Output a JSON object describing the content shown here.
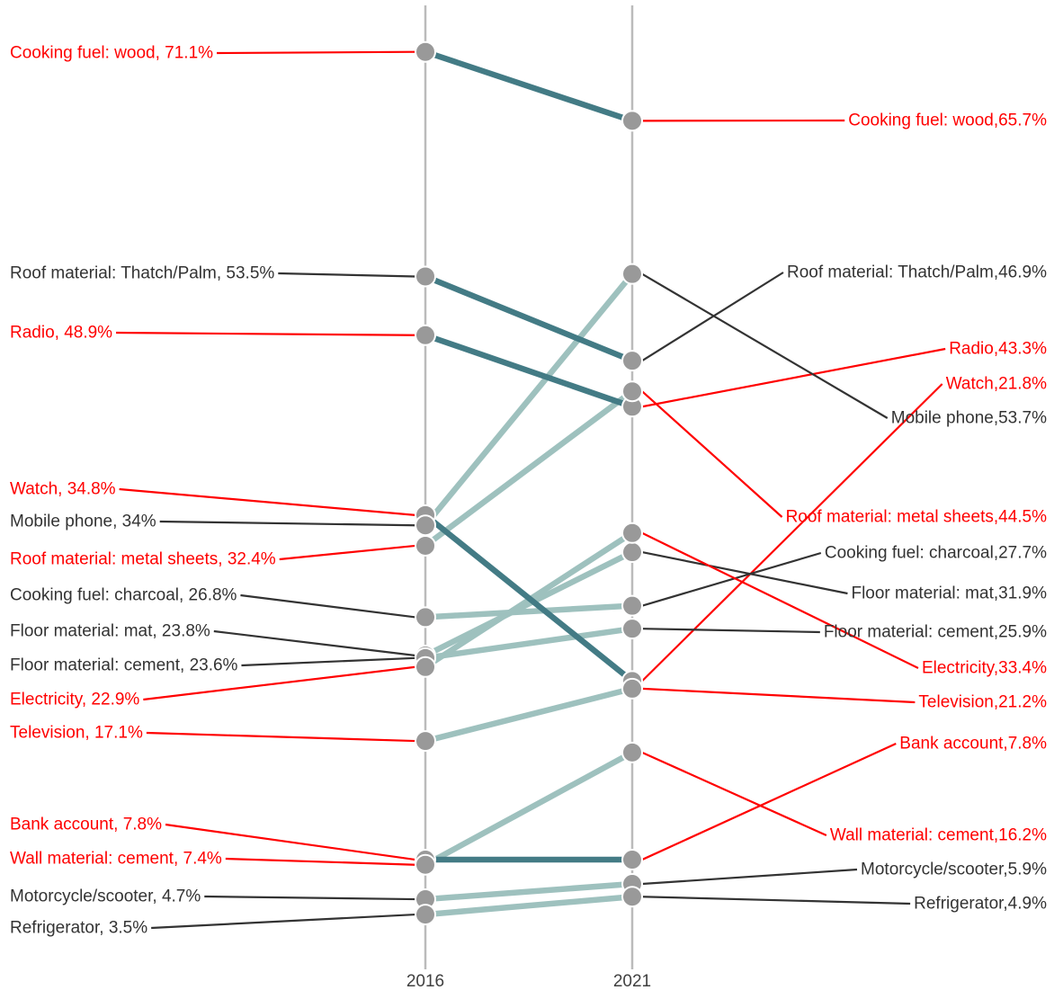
{
  "chart_data": {
    "type": "slope",
    "x": [
      "2016",
      "2021"
    ],
    "series": [
      {
        "name": "Cooking fuel: wood",
        "values": [
          71.1,
          65.7
        ],
        "label_2016": "Cooking fuel: wood, 71.1%",
        "label_2021": "Cooking fuel: wood,65.7%",
        "label_color": "red",
        "trend": "down"
      },
      {
        "name": "Roof material: Thatch/Palm",
        "values": [
          53.5,
          46.9
        ],
        "label_2016": "Roof material: Thatch/Palm, 53.5%",
        "label_2021": "Roof material: Thatch/Palm,46.9%",
        "label_color": "dark",
        "trend": "down"
      },
      {
        "name": "Radio",
        "values": [
          48.9,
          43.3
        ],
        "label_2016": "Radio, 48.9%",
        "label_2021": "Radio,43.3%",
        "label_color": "red",
        "trend": "down"
      },
      {
        "name": "Watch",
        "values": [
          34.8,
          21.8
        ],
        "label_2016": "Watch, 34.8%",
        "label_2021": "Watch,21.8%",
        "label_color": "red",
        "trend": "down"
      },
      {
        "name": "Mobile phone",
        "values": [
          34,
          53.7
        ],
        "label_2016": "Mobile phone, 34%",
        "label_2021": "Mobile phone,53.7%",
        "label_color": "dark",
        "trend": "up"
      },
      {
        "name": "Roof material: metal sheets",
        "values": [
          32.4,
          44.5
        ],
        "label_2016": "Roof material: metal sheets, 32.4%",
        "label_2021": "Roof material: metal sheets,44.5%",
        "label_color": "red",
        "trend": "up"
      },
      {
        "name": "Cooking fuel: charcoal",
        "values": [
          26.8,
          27.7
        ],
        "label_2016": "Cooking fuel: charcoal, 26.8%",
        "label_2021": "Cooking fuel: charcoal,27.7%",
        "label_color": "dark",
        "trend": "up"
      },
      {
        "name": "Floor material: mat",
        "values": [
          23.8,
          31.9
        ],
        "label_2016": "Floor material: mat, 23.8%",
        "label_2021": "Floor material: mat,31.9%",
        "label_color": "dark",
        "trend": "up"
      },
      {
        "name": "Floor material: cement",
        "values": [
          23.6,
          25.9
        ],
        "label_2016": "Floor material: cement, 23.6%",
        "label_2021": "Floor material: cement,25.9%",
        "label_color": "dark",
        "trend": "up"
      },
      {
        "name": "Electricity",
        "values": [
          22.9,
          33.4
        ],
        "label_2016": "Electricity, 22.9%",
        "label_2021": "Electricity,33.4%",
        "label_color": "red",
        "trend": "up"
      },
      {
        "name": "Television",
        "values": [
          17.1,
          21.2
        ],
        "label_2016": "Television, 17.1%",
        "label_2021": "Television,21.2%",
        "label_color": "red",
        "trend": "up"
      },
      {
        "name": "Bank account",
        "values": [
          7.8,
          7.8
        ],
        "label_2016": "Bank account, 7.8%",
        "label_2021": "Bank account,7.8%",
        "label_color": "red",
        "trend": "down"
      },
      {
        "name": "Wall material: cement",
        "values": [
          7.4,
          16.2
        ],
        "label_2016": "Wall material: cement, 7.4%",
        "label_2021": "Wall material: cement,16.2%",
        "label_color": "red",
        "trend": "up"
      },
      {
        "name": "Motorcycle/scooter",
        "values": [
          4.7,
          5.9
        ],
        "label_2016": "Motorcycle/scooter, 4.7%",
        "label_2021": "Motorcycle/scooter,5.9%",
        "label_color": "dark",
        "trend": "up"
      },
      {
        "name": "Refrigerator",
        "values": [
          3.5,
          4.9
        ],
        "label_2016": "Refrigerator, 3.5%",
        "label_2021": "Refrigerator,4.9%",
        "label_color": "dark",
        "trend": "up"
      }
    ],
    "colors": {
      "line_down": "#437b85",
      "line_up": "#9ec1be",
      "point": "#999999",
      "axis": "#bbbbbb",
      "label_red": "#ff0000",
      "label_dark": "#333333",
      "leader_red": "#ff0000",
      "leader_dark": "#333333"
    },
    "grid": false,
    "legend": "none"
  }
}
